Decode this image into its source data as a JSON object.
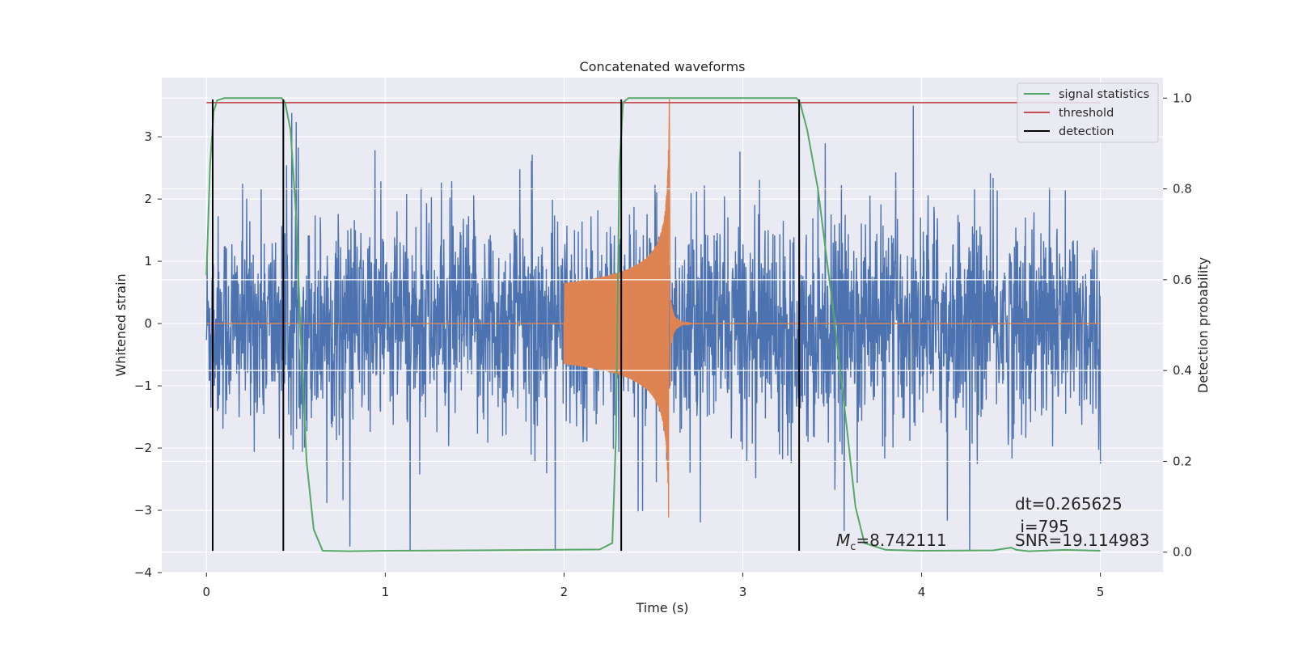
{
  "chart_data": {
    "type": "line",
    "title": "Concatenated waveforms",
    "xlabel": "Time (s)",
    "ylabel_left": "Whitened strain",
    "ylabel_right": "Detection probability",
    "xlim": [
      -0.25,
      5.35
    ],
    "ylim_left": [
      -4.0,
      3.95
    ],
    "ylim_right": [
      -0.045,
      1.045
    ],
    "x_ticks": [
      0,
      1,
      2,
      3,
      4,
      5
    ],
    "y_ticks_left": [
      -4,
      -3,
      -2,
      -1,
      0,
      1,
      2,
      3
    ],
    "y_ticks_right": [
      0.0,
      0.2,
      0.4,
      0.6,
      0.8,
      1.0
    ],
    "grid": true,
    "legend_position": "top-right",
    "legend": [
      {
        "label": "signal statistics",
        "color": "#55a868"
      },
      {
        "label": "threshold",
        "color": "#c44e52"
      },
      {
        "label": "detection",
        "color": "#000000"
      }
    ],
    "colors": {
      "noise": "#4c72b0",
      "signal": "#dd8452",
      "statistic": "#55a868",
      "threshold": "#c44e52",
      "detection": "#000000",
      "axes_bg": "#eaeaf2",
      "grid": "#ffffff"
    },
    "series": [
      {
        "name": "signal statistics",
        "axis": "right",
        "x": [
          0.0,
          0.02,
          0.04,
          0.06,
          0.1,
          0.2,
          0.35,
          0.42,
          0.44,
          0.47,
          0.5,
          0.53,
          0.56,
          0.6,
          0.65,
          0.8,
          1.0,
          1.5,
          1.9,
          2.2,
          2.27,
          2.29,
          2.31,
          2.33,
          2.36,
          2.5,
          3.0,
          3.3,
          3.32,
          3.36,
          3.42,
          3.5,
          3.58,
          3.63,
          3.68,
          3.8,
          4.0,
          4.4,
          4.5,
          4.53,
          4.6,
          4.8,
          5.0
        ],
        "y": [
          0.61,
          0.85,
          0.97,
          0.995,
          1.0,
          1.0,
          1.0,
          1.0,
          0.99,
          0.93,
          0.75,
          0.45,
          0.2,
          0.05,
          0.003,
          0.002,
          0.003,
          0.004,
          0.005,
          0.006,
          0.02,
          0.25,
          0.85,
          0.99,
          1.0,
          1.0,
          1.0,
          1.0,
          0.99,
          0.93,
          0.8,
          0.55,
          0.28,
          0.1,
          0.02,
          0.005,
          0.003,
          0.004,
          0.01,
          0.005,
          0.002,
          0.005,
          0.003
        ]
      },
      {
        "name": "threshold",
        "axis": "right",
        "x": [
          0.0,
          5.0
        ],
        "y": [
          0.99,
          0.99
        ]
      },
      {
        "name": "detection",
        "axis": "left",
        "x": [
          0.035,
          0.43,
          2.32,
          3.315
        ],
        "y_from": -3.65,
        "y_to": 3.6
      },
      {
        "name": "noise",
        "axis": "left",
        "x_range": [
          0.0,
          5.0
        ],
        "envelope_y": [
          -3.65,
          3.5
        ]
      },
      {
        "name": "signal",
        "axis": "left",
        "x_range": [
          2.0,
          2.6
        ],
        "peak_y": 3.6
      }
    ],
    "annotations": [
      {
        "id": "dt",
        "text": "dt=0.265625"
      },
      {
        "id": "i",
        "text": " i=795"
      },
      {
        "id": "mc",
        "text": "=8.742111",
        "symbol": "M",
        "subscript": "c"
      },
      {
        "id": "snr",
        "text": "SNR=19.114983"
      }
    ]
  }
}
